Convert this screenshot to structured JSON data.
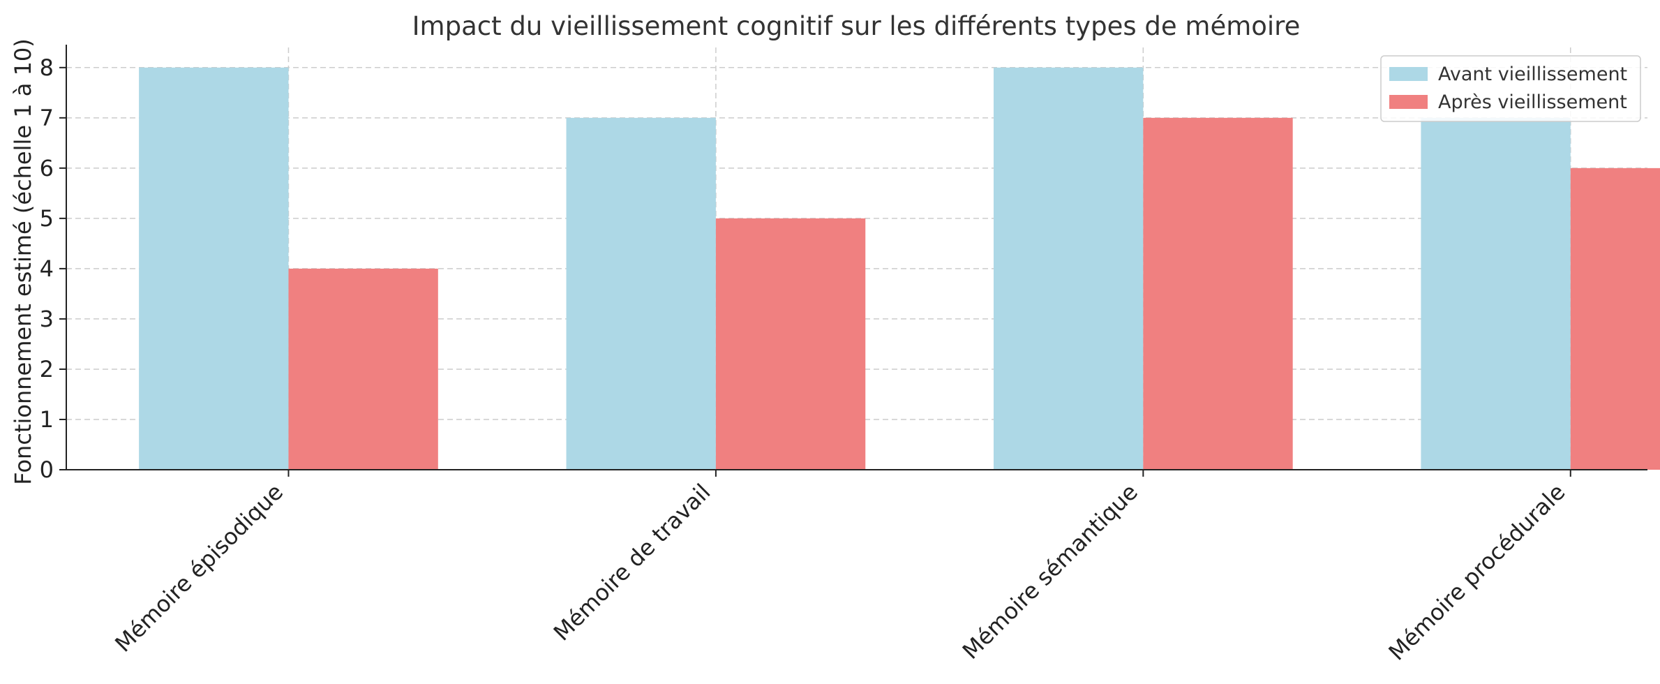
{
  "chart_data": {
    "type": "bar",
    "title": "Impact du vieillissement cognitif sur les différents types de mémoire",
    "xlabel": "",
    "ylabel": "Fonctionnement estimé (échelle 1 à 10)",
    "categories": [
      "Mémoire épisodique",
      "Mémoire de travail",
      "Mémoire sémantique",
      "Mémoire procédurale"
    ],
    "series": [
      {
        "name": "Avant vieillissement",
        "values": [
          8,
          7,
          8,
          7
        ],
        "color": "#add8e6"
      },
      {
        "name": "Après vieillissement",
        "values": [
          4,
          5,
          7,
          6
        ],
        "color": "#f08080"
      }
    ],
    "ylim": [
      0,
      8.4
    ],
    "yticks": [
      0,
      1,
      2,
      3,
      4,
      5,
      6,
      7,
      8
    ],
    "grid": true,
    "legend_position": "top-right"
  }
}
